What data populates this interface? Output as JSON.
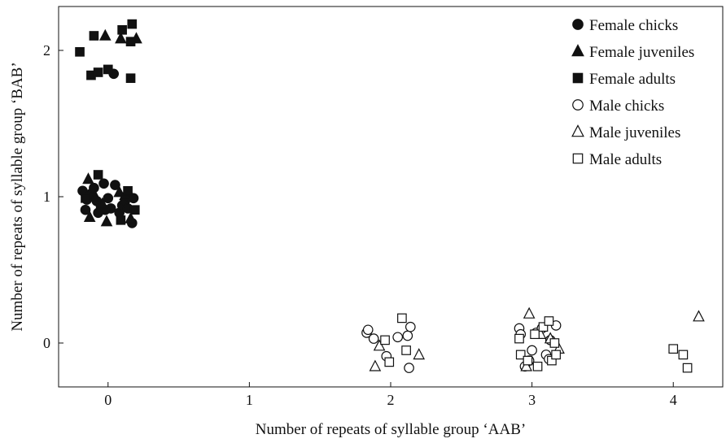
{
  "chart_data": {
    "type": "scatter",
    "xlabel": "Number of repeats of syllable group ‘AAB’",
    "ylabel": "Number of repeats of syllable group ‘BAB’",
    "xlim": [
      -0.35,
      4.35
    ],
    "ylim": [
      -0.3,
      2.3
    ],
    "xticks": [
      "0",
      "1",
      "2",
      "3",
      "4"
    ],
    "yticks": [
      "0",
      "1",
      "2"
    ],
    "legend_position": "top-right",
    "series": [
      {
        "name": "Female chicks",
        "marker": "circle",
        "filled": true,
        "points": [
          [
            -0.18,
            1.04
          ],
          [
            -0.15,
            0.98
          ],
          [
            -0.12,
            1.02
          ],
          [
            -0.1,
            1.06
          ],
          [
            -0.08,
            0.97
          ],
          [
            -0.05,
            0.93
          ],
          [
            -0.03,
            1.09
          ],
          [
            0.0,
            0.99
          ],
          [
            0.02,
            0.92
          ],
          [
            0.05,
            1.08
          ],
          [
            0.08,
            0.89
          ],
          [
            0.1,
            0.94
          ],
          [
            0.12,
            0.97
          ],
          [
            0.15,
            1.0
          ],
          [
            0.18,
            0.99
          ],
          [
            -0.16,
            0.91
          ],
          [
            -0.02,
            0.91
          ],
          [
            0.17,
            0.82
          ],
          [
            -0.07,
            0.89
          ],
          [
            0.14,
            0.92
          ],
          [
            0.04,
            1.84
          ]
        ]
      },
      {
        "name": "Female juveniles",
        "marker": "triangle",
        "filled": true,
        "points": [
          [
            -0.14,
            1.12
          ],
          [
            -0.09,
            1.0
          ],
          [
            -0.04,
            0.95
          ],
          [
            0.08,
            1.03
          ],
          [
            0.12,
            1.01
          ],
          [
            -0.13,
            0.86
          ],
          [
            -0.01,
            0.83
          ],
          [
            0.16,
            0.85
          ],
          [
            -0.02,
            2.1
          ],
          [
            0.09,
            2.08
          ],
          [
            0.2,
            2.08
          ]
        ]
      },
      {
        "name": "Female adults",
        "marker": "square",
        "filled": true,
        "points": [
          [
            -0.07,
            1.15
          ],
          [
            -0.16,
            0.99
          ],
          [
            0.14,
            1.04
          ],
          [
            0.19,
            0.91
          ],
          [
            0.09,
            0.84
          ],
          [
            -0.1,
            2.1
          ],
          [
            0.1,
            2.14
          ],
          [
            0.16,
            2.06
          ],
          [
            0.17,
            2.18
          ],
          [
            -0.2,
            1.99
          ],
          [
            -0.12,
            1.83
          ],
          [
            -0.07,
            1.85
          ],
          [
            0.0,
            1.87
          ],
          [
            0.16,
            1.81
          ]
        ]
      },
      {
        "name": "Male chicks",
        "marker": "circle",
        "filled": false,
        "points": [
          [
            1.83,
            0.07
          ],
          [
            1.84,
            0.09
          ],
          [
            1.88,
            0.03
          ],
          [
            1.97,
            -0.09
          ],
          [
            2.05,
            0.04
          ],
          [
            2.12,
            0.05
          ],
          [
            2.14,
            0.11
          ],
          [
            2.13,
            -0.17
          ],
          [
            2.91,
            0.1
          ],
          [
            2.92,
            0.06
          ],
          [
            2.95,
            -0.16
          ],
          [
            2.98,
            -0.12
          ],
          [
            3.0,
            -0.05
          ],
          [
            3.03,
            0.07
          ],
          [
            3.07,
            0.1
          ],
          [
            3.1,
            -0.08
          ],
          [
            3.13,
            0.02
          ],
          [
            3.17,
            0.12
          ],
          [
            3.12,
            -0.11
          ]
        ]
      },
      {
        "name": "Male juveniles",
        "marker": "triangle",
        "filled": false,
        "points": [
          [
            1.92,
            -0.02
          ],
          [
            1.89,
            -0.16
          ],
          [
            2.2,
            -0.08
          ],
          [
            2.98,
            0.2
          ],
          [
            3.06,
            0.06
          ],
          [
            3.13,
            0.03
          ],
          [
            3.19,
            -0.04
          ],
          [
            2.96,
            -0.16
          ],
          [
            4.18,
            0.18
          ]
        ]
      },
      {
        "name": "Male adults",
        "marker": "square",
        "filled": false,
        "points": [
          [
            1.96,
            0.02
          ],
          [
            1.99,
            -0.13
          ],
          [
            2.08,
            0.17
          ],
          [
            2.11,
            -0.05
          ],
          [
            2.91,
            0.03
          ],
          [
            2.92,
            -0.08
          ],
          [
            2.97,
            -0.12
          ],
          [
            3.02,
            0.06
          ],
          [
            3.04,
            -0.16
          ],
          [
            3.08,
            0.11
          ],
          [
            3.12,
            0.15
          ],
          [
            3.14,
            -0.12
          ],
          [
            3.17,
            -0.08
          ],
          [
            3.16,
            0.0
          ],
          [
            4.0,
            -0.04
          ],
          [
            4.07,
            -0.08
          ],
          [
            4.1,
            -0.17
          ]
        ]
      }
    ]
  }
}
